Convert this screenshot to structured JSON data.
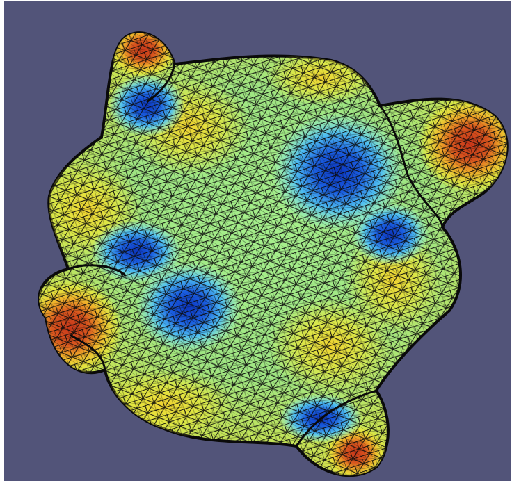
{
  "scene": {
    "subject": "mesh-surface",
    "background_color": "#525479",
    "wireframe_color": "#0a0a0a",
    "colormap": [
      "#1446c8",
      "#2f8ff0",
      "#6fe0f0",
      "#9aea8a",
      "#e6ea3a",
      "#f0b02a",
      "#c8371a"
    ]
  }
}
